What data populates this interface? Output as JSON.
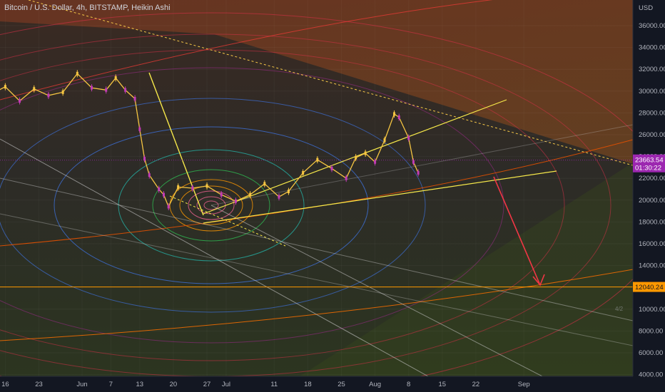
{
  "header": {
    "title": "Bitcoin / U.S. Dollar, 4h, BITSTAMP, Heikin Ashi"
  },
  "chart_data": {
    "type": "line",
    "title": "Bitcoin / U.S. Dollar, 4h, BITSTAMP, Heikin Ashi",
    "currency": "USD",
    "ylim": [
      3500,
      37600
    ],
    "y_ticks": [
      "36000.00",
      "34000.00",
      "32000.00",
      "30000.00",
      "28000.00",
      "26000.00",
      "24000.00",
      "22000.00",
      "20000.00",
      "18000.00",
      "16000.00",
      "14000.00",
      "10000.00",
      "8000.00",
      "6000.00",
      "4000.00"
    ],
    "x_ticks": [
      "16",
      "23",
      "Jun",
      "7",
      "13",
      "20",
      "27",
      "Jul",
      "11",
      "18",
      "25",
      "Aug",
      "8",
      "15",
      "22",
      "Sep"
    ],
    "price_series": {
      "name": "BTCUSD",
      "x": [
        "May 10",
        "May 13",
        "May 16",
        "May 19",
        "May 22",
        "May 25",
        "May 28",
        "May 31",
        "Jun 3",
        "Jun 6",
        "Jun 8",
        "Jun 10",
        "Jun 12",
        "Jun 13",
        "Jun 14",
        "Jun 15",
        "Jun 17",
        "Jun 18",
        "Jun 19",
        "Jun 21",
        "Jun 24",
        "Jun 27",
        "Jun 30",
        "Jul 3",
        "Jul 6",
        "Jul 9",
        "Jul 12",
        "Jul 14",
        "Jul 17",
        "Jul 20",
        "Jul 23",
        "Jul 26",
        "Jul 28",
        "Jul 30",
        "Aug 1",
        "Aug 3",
        "Aug 5",
        "Aug 6",
        "Aug 8",
        "Aug 9",
        "Aug 10"
      ],
      "values": [
        30200,
        29700,
        30400,
        29100,
        30200,
        29600,
        29900,
        31600,
        30300,
        30100,
        31200,
        30100,
        29300,
        26500,
        23800,
        22300,
        21000,
        20500,
        19400,
        21200,
        21100,
        21300,
        20500,
        19900,
        20500,
        21500,
        20300,
        20800,
        22500,
        23700,
        22900,
        22000,
        23900,
        24300,
        23500,
        25500,
        27900,
        27600,
        25700,
        23500,
        22500
      ]
    },
    "last_price": {
      "value": "23663.54",
      "countdown": "01:30:22",
      "color": "#9c27b0"
    },
    "target_level": {
      "value": "12040.24",
      "color": "#ff9800"
    },
    "grid": true,
    "legend": "none"
  }
}
